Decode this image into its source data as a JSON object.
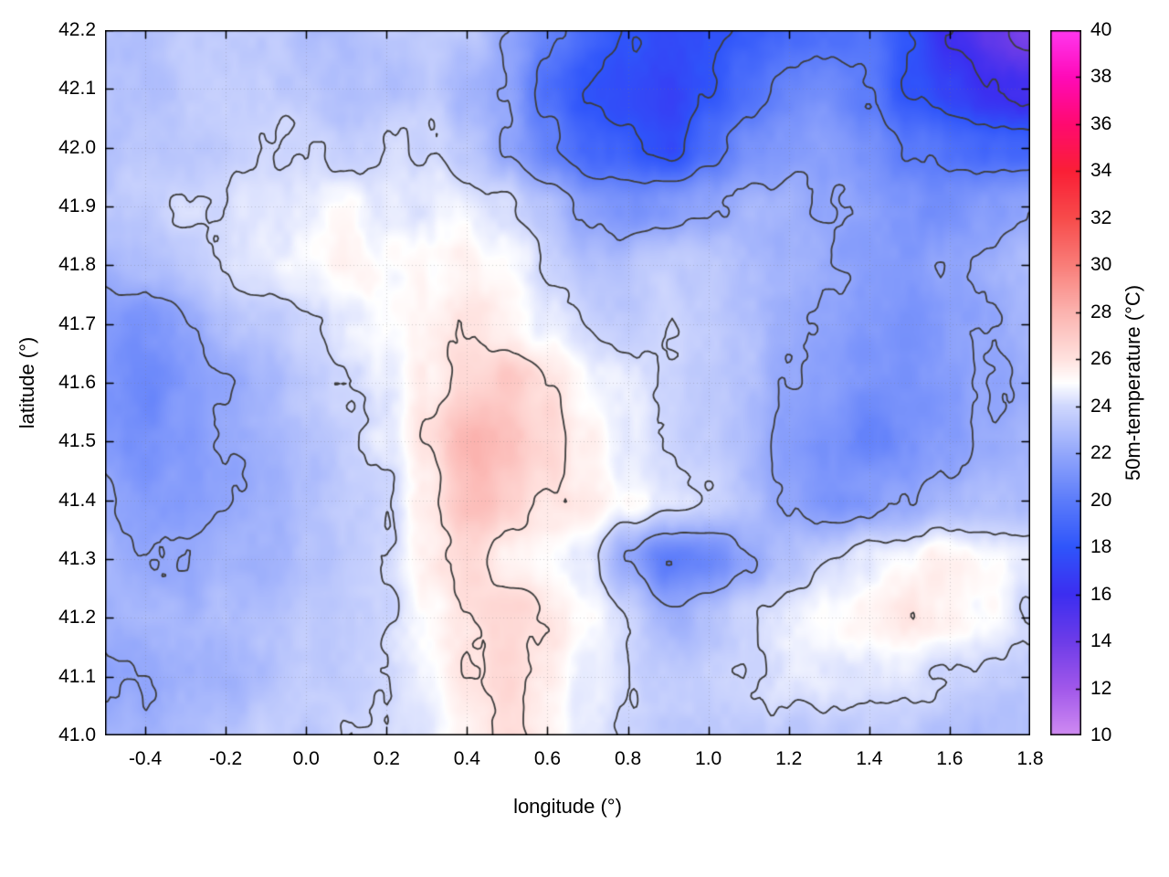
{
  "chart_data": {
    "type": "heatmap",
    "title": "",
    "xlabel": "longitude (°)",
    "ylabel": "latitude (°)",
    "colorbar_label": "50m-temperature (°C)",
    "x_range": [
      -0.5,
      1.8
    ],
    "y_range": [
      41.0,
      42.2
    ],
    "x_tick_labels": [
      "-0.4",
      "-0.2",
      "0.0",
      "0.2",
      "0.4",
      "0.6",
      "0.8",
      "1.0",
      "1.2",
      "1.4",
      "1.6",
      "1.8"
    ],
    "y_tick_labels": [
      "41.0",
      "41.1",
      "41.2",
      "41.3",
      "41.4",
      "41.5",
      "41.6",
      "41.7",
      "41.8",
      "41.9",
      "42.0",
      "42.1",
      "42.2"
    ],
    "colorbar_range": [
      10,
      40
    ],
    "colorbar_tick_labels": [
      "10",
      "12",
      "14",
      "16",
      "18",
      "20",
      "22",
      "24",
      "26",
      "28",
      "30",
      "32",
      "34",
      "36",
      "38",
      "40"
    ],
    "grid_on": true,
    "legend": "colorbar-right",
    "contour_levels": [
      14,
      16,
      18,
      20,
      22,
      24,
      26
    ],
    "contour_color": "#3d3d3d",
    "grid_color": "rgba(120,120,120,0.35)",
    "axis_color": "#000000",
    "palette": [
      {
        "t": 10,
        "c": "#d08cf2"
      },
      {
        "t": 12,
        "c": "#a158ea"
      },
      {
        "t": 14,
        "c": "#6d3ce8"
      },
      {
        "t": 16,
        "c": "#3c2ef0"
      },
      {
        "t": 18,
        "c": "#2f55fa"
      },
      {
        "t": 20,
        "c": "#5c7cfa"
      },
      {
        "t": 22,
        "c": "#93a7fb"
      },
      {
        "t": 24,
        "c": "#cfd7fd"
      },
      {
        "t": 25,
        "c": "#ffffff"
      },
      {
        "t": 26,
        "c": "#ffe2df"
      },
      {
        "t": 28,
        "c": "#fbb3af"
      },
      {
        "t": 30,
        "c": "#f97e79"
      },
      {
        "t": 32,
        "c": "#f74b4b"
      },
      {
        "t": 34,
        "c": "#fa1f36"
      },
      {
        "t": 36,
        "c": "#ff0a70"
      },
      {
        "t": 38,
        "c": "#ff0ab8"
      },
      {
        "t": 40,
        "c": "#ff38f0"
      }
    ],
    "grid": {
      "lon_start": -0.5,
      "lon_step": 0.1,
      "nx": 24,
      "lat_start": 42.2,
      "lat_step": -0.1,
      "ny": 13,
      "units": "°C",
      "values": [
        [
          23,
          23,
          23.5,
          23.5,
          23.5,
          23,
          23,
          23.5,
          23.5,
          23.5,
          22,
          20.5,
          19,
          18,
          17.5,
          17.5,
          18.5,
          19,
          19.5,
          19.5,
          18,
          16,
          14.5,
          13.5
        ],
        [
          23,
          23,
          23.5,
          23.5,
          23.5,
          23.5,
          23,
          23,
          23.5,
          22.5,
          22,
          19.5,
          18,
          17.5,
          17,
          18,
          19.5,
          20.5,
          21,
          20,
          18,
          17,
          16,
          15.5
        ],
        [
          23,
          23.5,
          23.5,
          23.5,
          24,
          24,
          23.5,
          24,
          24,
          23.5,
          22,
          20.5,
          19,
          18.5,
          17.5,
          19.5,
          21,
          21.5,
          21.5,
          21,
          20,
          19.5,
          19,
          19
        ],
        [
          23.5,
          23.5,
          24,
          24,
          24.5,
          24.5,
          25,
          24.5,
          24.5,
          24.5,
          24,
          23,
          21.5,
          21,
          21.5,
          22,
          22.5,
          22.5,
          22,
          21.5,
          21,
          21,
          21.5,
          22
        ],
        [
          22.5,
          23,
          23.5,
          24,
          24.5,
          25,
          25.5,
          25,
          25,
          25.5,
          25,
          24,
          23,
          23,
          23.5,
          23.5,
          23,
          22.5,
          22,
          21.5,
          21.5,
          22,
          22.5,
          23
        ],
        [
          21.5,
          21,
          22,
          23,
          23.5,
          24,
          24.5,
          25,
          25.5,
          26,
          25.5,
          24.5,
          24,
          23.5,
          24,
          23.5,
          23,
          22.5,
          22,
          21.5,
          21,
          21.5,
          22,
          22.5
        ],
        [
          21,
          20.5,
          21.5,
          22,
          22.5,
          23.5,
          24,
          24.5,
          25.5,
          26.5,
          27,
          26,
          25,
          24.5,
          24,
          23.5,
          23,
          22,
          21.5,
          21,
          21,
          21.5,
          22,
          22
        ],
        [
          21.5,
          21,
          21.5,
          22,
          22.5,
          23,
          23.5,
          24.5,
          26,
          28,
          27.5,
          26.5,
          25.5,
          24.5,
          24,
          23.5,
          23,
          21.5,
          21,
          20.5,
          21,
          21.5,
          22,
          22.5
        ],
        [
          22,
          21.5,
          21.5,
          22,
          22.5,
          23,
          23.5,
          24,
          25.5,
          27.5,
          27,
          26,
          25.5,
          25,
          24.5,
          24,
          23,
          22,
          21,
          21.5,
          22,
          22.5,
          23,
          23
        ],
        [
          22.5,
          22,
          22,
          22.5,
          22.5,
          23,
          23.5,
          24,
          25.5,
          26.5,
          25.5,
          25,
          24.5,
          22,
          20,
          20.5,
          22,
          23,
          24,
          24.5,
          25,
          25.5,
          25,
          24.5
        ],
        [
          22.5,
          22.5,
          22.5,
          23,
          23,
          23.5,
          23.5,
          24,
          25,
          26,
          26.5,
          26,
          25,
          24,
          22.5,
          23,
          24,
          24.5,
          25,
          25.5,
          26,
          25.5,
          25,
          24
        ],
        [
          22,
          22,
          22.5,
          22.5,
          23,
          23.5,
          23.5,
          24,
          25,
          26,
          26.5,
          25.5,
          24.5,
          24,
          23.5,
          23.5,
          24,
          24.5,
          24.5,
          24.5,
          24.5,
          24,
          23.5,
          23.5
        ],
        [
          22.5,
          22.5,
          23,
          23,
          23.5,
          23.5,
          24,
          24,
          24.5,
          25.5,
          26,
          25.5,
          24.5,
          24,
          23.5,
          23.5,
          23.5,
          23.5,
          23.5,
          23.5,
          23.5,
          23,
          23,
          23
        ]
      ]
    }
  }
}
